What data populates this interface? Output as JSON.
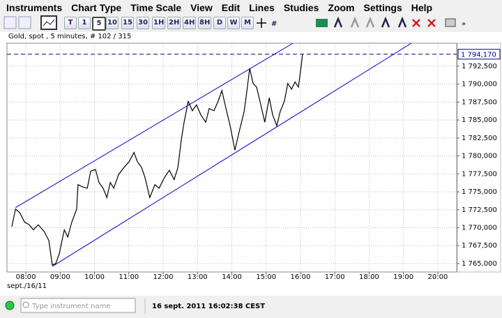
{
  "menu": [
    "Instruments",
    "Chart Type",
    "Time Scale",
    "View",
    "Edit",
    "Lines",
    "Studies",
    "Zoom",
    "Settings",
    "Help"
  ],
  "toolbar": {
    "periods": [
      "T",
      "1",
      "5",
      "10",
      "15",
      "30",
      "1H",
      "2H",
      "4H",
      "8H",
      "D",
      "W",
      "M"
    ],
    "selected": "5"
  },
  "chart_data": {
    "type": "line",
    "title": "Gold, spot , 5 minutes, # 102 / 315",
    "x": [
      7.59,
      7.7,
      7.82,
      7.96,
      8.1,
      8.22,
      8.36,
      8.53,
      8.67,
      8.77,
      8.87,
      8.97,
      9.12,
      9.22,
      9.34,
      9.48,
      9.52,
      9.64,
      9.79,
      9.89,
      10.03,
      10.13,
      10.25,
      10.36,
      10.46,
      10.56,
      10.7,
      10.86,
      11.01,
      11.15,
      11.25,
      11.37,
      11.47,
      11.61,
      11.76,
      11.88,
      12.04,
      12.18,
      12.32,
      12.43,
      12.53,
      12.61,
      12.73,
      12.85,
      12.97,
      13.1,
      13.24,
      13.34,
      13.48,
      13.6,
      13.71,
      13.83,
      13.95,
      14.09,
      14.21,
      14.36,
      14.44,
      14.52,
      14.62,
      14.72,
      14.84,
      14.96,
      15.09,
      15.19,
      15.31,
      15.41,
      15.53,
      15.63,
      15.74,
      15.84,
      15.94,
      16.02,
      16.06
    ],
    "series": [
      {
        "name": "Gold, spot",
        "color": "#000000",
        "values": [
          1770.15,
          1772.6,
          1772.1,
          1770.8,
          1770.4,
          1769.7,
          1770.4,
          1769.5,
          1768.2,
          1764.8,
          1765.0,
          1766.3,
          1769.7,
          1768.7,
          1770.8,
          1772.6,
          1776.0,
          1775.7,
          1775.5,
          1777.9,
          1778.1,
          1776.3,
          1775.5,
          1774.2,
          1776.3,
          1775.5,
          1777.4,
          1778.4,
          1779.2,
          1780.5,
          1779.2,
          1778.4,
          1777.0,
          1774.2,
          1776.0,
          1775.5,
          1777.0,
          1778.0,
          1776.7,
          1778.4,
          1782.3,
          1784.7,
          1787.6,
          1786.3,
          1787.1,
          1785.7,
          1784.7,
          1786.6,
          1786.3,
          1787.6,
          1789.1,
          1786.6,
          1784.2,
          1780.8,
          1783.3,
          1786.2,
          1789.1,
          1792.2,
          1790.1,
          1789.6,
          1787.2,
          1784.7,
          1788.1,
          1785.7,
          1784.2,
          1786.2,
          1787.6,
          1790.1,
          1789.3,
          1790.3,
          1789.6,
          1792.5,
          1794.2
        ]
      }
    ],
    "trend_lines": [
      {
        "color": "#0000cc",
        "x": [
          7.7,
          15.78
        ],
        "y": [
          1772.8,
          1795.7
        ]
      },
      {
        "color": "#0000cc",
        "x": [
          8.77,
          19.23
        ],
        "y": [
          1764.6,
          1795.7
        ]
      }
    ],
    "last_price": {
      "value": 1794.17,
      "label": "1 794,170",
      "color": "#000080"
    },
    "xlim": [
      7.45,
      20.55
    ],
    "xticks": [
      {
        "value": 8,
        "label": "08:00"
      },
      {
        "value": 9,
        "label": "09:00"
      },
      {
        "value": 10,
        "label": "10:00"
      },
      {
        "value": 11,
        "label": "11:00"
      },
      {
        "value": 12,
        "label": "12:00"
      },
      {
        "value": 13,
        "label": "13:00"
      },
      {
        "value": 14,
        "label": "14:00"
      },
      {
        "value": 15,
        "label": "15:00"
      },
      {
        "value": 16,
        "label": "16:00"
      },
      {
        "value": 17,
        "label": "17:00"
      },
      {
        "value": 18,
        "label": "18:00"
      },
      {
        "value": 19,
        "label": "19:00"
      },
      {
        "value": 20,
        "label": "20:00"
      }
    ],
    "x_date_label": "sept./16/11",
    "ylim": [
      1763.83,
      1795.7
    ],
    "yticks": [
      {
        "value": 1765,
        "label": "1 765,000"
      },
      {
        "value": 1767.5,
        "label": "1 767,500"
      },
      {
        "value": 1770,
        "label": "1 770,000"
      },
      {
        "value": 1772.5,
        "label": "1 772,500"
      },
      {
        "value": 1775,
        "label": "1 775,000"
      },
      {
        "value": 1777.5,
        "label": "1 777,500"
      },
      {
        "value": 1780,
        "label": "1 780,000"
      },
      {
        "value": 1782.5,
        "label": "1 782,500"
      },
      {
        "value": 1785,
        "label": "1 785,000"
      },
      {
        "value": 1787.5,
        "label": "1 787,500"
      },
      {
        "value": 1790,
        "label": "1 790,000"
      },
      {
        "value": 1792.5,
        "label": "1 792,500"
      }
    ],
    "grid": true
  },
  "status": {
    "placeholder": "Type instrument name",
    "timestamp": "16 sept. 2011 16:02:38 CEST"
  }
}
